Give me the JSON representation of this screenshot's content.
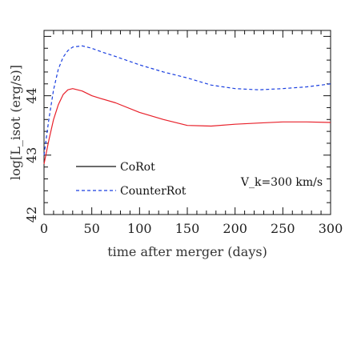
{
  "chart_data": {
    "type": "line",
    "title": "",
    "xlabel": "time after merger (days)",
    "ylabel": "log[L_isot (erg/s)]",
    "xlim": [
      0,
      300
    ],
    "ylim": [
      42,
      45.1
    ],
    "x_ticks": [
      "0",
      "50",
      "100",
      "150",
      "200",
      "250",
      "300"
    ],
    "y_ticks": [
      "42",
      "43",
      "44"
    ],
    "annotation": "V_k=300 km/s",
    "legend_position": "lower-left",
    "grid": false,
    "series": [
      {
        "name": "CoRot",
        "color": "#e8202a",
        "dash": "solid",
        "x": [
          0,
          5,
          10,
          15,
          20,
          25,
          30,
          40,
          50,
          60,
          75,
          100,
          125,
          150,
          175,
          200,
          225,
          250,
          275,
          300
        ],
        "y": [
          42.85,
          43.25,
          43.6,
          43.85,
          44.02,
          44.1,
          44.12,
          44.08,
          44.0,
          43.95,
          43.88,
          43.72,
          43.6,
          43.5,
          43.49,
          43.52,
          43.54,
          43.56,
          43.56,
          43.55
        ]
      },
      {
        "name": "CounterRot",
        "color": "#1a3fe0",
        "dash": "dashed",
        "x": [
          0,
          5,
          10,
          15,
          20,
          25,
          30,
          40,
          50,
          60,
          75,
          100,
          125,
          150,
          175,
          200,
          225,
          250,
          275,
          300
        ],
        "y": [
          43.0,
          43.6,
          44.1,
          44.45,
          44.65,
          44.76,
          44.82,
          44.84,
          44.8,
          44.74,
          44.66,
          44.52,
          44.4,
          44.3,
          44.18,
          44.12,
          44.1,
          44.12,
          44.15,
          44.2
        ]
      }
    ]
  }
}
